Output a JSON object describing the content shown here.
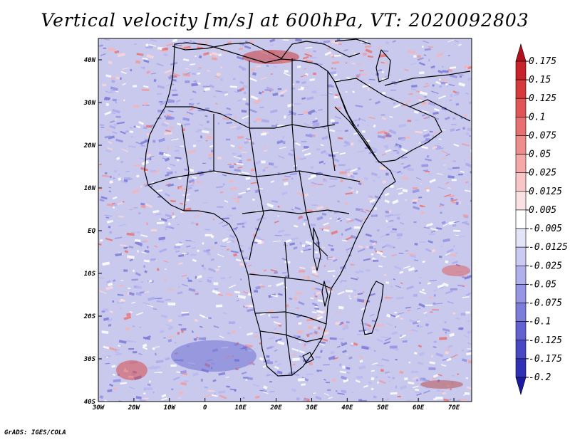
{
  "title": "Vertical velocity [m/s] at 600hPa, VT: 2020092803",
  "credit": "GrADS: IGES/COLA",
  "map": {
    "lon_ticks": [
      "30W",
      "20W",
      "10W",
      "0",
      "10E",
      "20E",
      "30E",
      "40E",
      "50E",
      "60E",
      "70E"
    ],
    "lat_ticks": [
      "40N",
      "30N",
      "20N",
      "10N",
      "EQ",
      "10S",
      "20S",
      "30S",
      "40S"
    ],
    "lon_range": [
      -30,
      75
    ],
    "lat_range": [
      -40,
      45
    ],
    "field": "vertical velocity at 600 hPa",
    "units": "m/s"
  },
  "colorbar": {
    "levels": [
      "0.175",
      "0.15",
      "0.125",
      "0.1",
      "0.075",
      "0.05",
      "0.025",
      "0.0125",
      "0.005",
      "-0.005",
      "-0.0125",
      "-0.025",
      "-0.05",
      "-0.075",
      "-0.1",
      "-0.125",
      "-0.175",
      "-0.2"
    ],
    "colors": [
      "#b40f1e",
      "#c8222a",
      "#d73a3a",
      "#e05555",
      "#e87070",
      "#ef8c8c",
      "#f4a8a8",
      "#f8c6c6",
      "#fbe2e2",
      "#ffffff",
      "#e4e4f8",
      "#cacaf3",
      "#b0b0ec",
      "#9696e4",
      "#7c7cdb",
      "#6262d0",
      "#4848c4",
      "#3030b4",
      "#1a1aa0"
    ]
  }
}
